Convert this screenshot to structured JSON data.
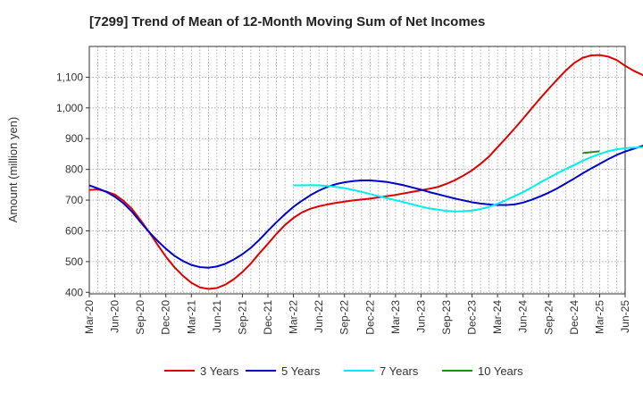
{
  "chart_data": {
    "type": "line",
    "title": "[7299]  Trend of Mean of 12-Month Moving Sum of Net Incomes",
    "xlabel": "",
    "ylabel": "Amount (million yen)",
    "ylim": [
      395,
      1200
    ],
    "yticks": [
      400,
      500,
      600,
      700,
      800,
      900,
      1000,
      1100
    ],
    "ytick_labels": [
      "400",
      "500",
      "600",
      "700",
      "800",
      "900",
      "1,000",
      "1,100"
    ],
    "x_start": "Mar-20",
    "x_end": "Jun-25",
    "xtick_labels": [
      "Mar-20",
      "Jun-20",
      "Sep-20",
      "Dec-20",
      "Mar-21",
      "Jun-21",
      "Sep-21",
      "Dec-21",
      "Mar-22",
      "Jun-22",
      "Sep-22",
      "Dec-22",
      "Mar-23",
      "Jun-23",
      "Sep-23",
      "Dec-23",
      "Mar-24",
      "Jun-24",
      "Sep-24",
      "Dec-24",
      "Mar-25",
      "Jun-25"
    ],
    "grid": true,
    "legend_position": "bottom",
    "series": [
      {
        "name": "3 Years",
        "color": "#dd0000",
        "start": "Mar-20",
        "values": [
          733,
          735,
          728,
          718,
          698,
          672,
          636,
          597,
          556,
          516,
          482,
          454,
          431,
          416,
          411,
          414,
          425,
          443,
          466,
          494,
          527,
          558,
          590,
          619,
          642,
          660,
          672,
          680,
          686,
          691,
          695,
          699,
          702,
          705,
          709,
          713,
          717,
          722,
          727,
          732,
          737,
          743,
          753,
          765,
          780,
          797,
          818,
          842,
          872,
          902,
          933,
          965,
          998,
          1031,
          1062,
          1092,
          1121,
          1146,
          1163,
          1171,
          1172,
          1167,
          1156,
          1137,
          1121,
          1108,
          1098,
          1092,
          1091,
          1096,
          1111
        ]
      },
      {
        "name": "5 Years",
        "color": "#0000cc",
        "start": "Mar-20",
        "values": [
          748,
          738,
          727,
          711,
          690,
          663,
          629,
          597,
          568,
          542,
          519,
          502,
          489,
          482,
          480,
          484,
          493,
          507,
          524,
          545,
          571,
          600,
          628,
          654,
          678,
          698,
          716,
          731,
          743,
          752,
          758,
          762,
          764,
          764,
          762,
          759,
          754,
          748,
          741,
          734,
          726,
          719,
          712,
          705,
          699,
          693,
          689,
          686,
          684,
          684,
          686,
          692,
          701,
          712,
          724,
          738,
          754,
          770,
          787,
          803,
          818,
          833,
          847,
          858,
          867,
          876,
          886,
          897,
          908,
          919,
          932,
          947,
          964
        ]
      },
      {
        "name": "7 Years",
        "color": "#00eeee",
        "start": "Mar-22",
        "values": [
          748,
          748,
          749,
          748,
          746,
          743,
          739,
          733,
          727,
          720,
          713,
          706,
          700,
          693,
          686,
          679,
          673,
          669,
          665,
          663,
          664,
          666,
          671,
          678,
          688,
          700,
          713,
          726,
          741,
          757,
          772,
          787,
          801,
          814,
          828,
          840,
          850,
          859,
          865,
          869,
          871,
          872,
          873,
          874,
          876,
          879,
          883
        ]
      },
      {
        "name": "10 Years",
        "color": "#228b22",
        "start": "Jan-25",
        "values": [
          853,
          856,
          859
        ]
      }
    ]
  }
}
